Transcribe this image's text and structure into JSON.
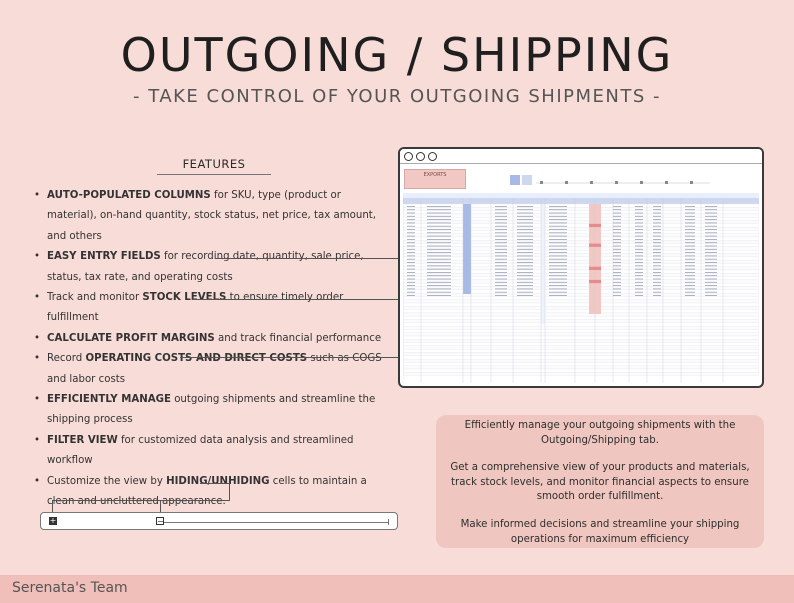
{
  "header": {
    "title": "OUTGOING / SHIPPING",
    "subtitle": "- TAKE CONTROL OF YOUR OUTGOING SHIPMENTS -"
  },
  "features": {
    "heading": "FEATURES",
    "items": [
      {
        "bold": "AUTO-POPULATED COLUMNS",
        "pre": "",
        "post": " for SKU, type (product or material), on-hand quantity, stock status, net price, tax amount, and others"
      },
      {
        "bold": "EASY ENTRY FIELDS",
        "pre": "",
        "post": " for recording date, quantity, sale price, status, tax rate, and operating costs"
      },
      {
        "bold": "STOCK LEVELS",
        "pre": "Track and monitor ",
        "post": " to ensure timely order fulfillment"
      },
      {
        "bold": "CALCULATE PROFIT MARGINS",
        "pre": "",
        "post": " and track financial performance"
      },
      {
        "bold": "OPERATING COSTS AND DIRECT COSTS",
        "pre": "Record ",
        "post": " such as COGS and labor costs"
      },
      {
        "bold": "EFFICIENTLY MANAGE",
        "pre": "",
        "post": " outgoing shipments and streamline the shipping process"
      },
      {
        "bold": "FILTER VIEW",
        "pre": "",
        "post": " for customized data analysis and streamlined workflow"
      },
      {
        "bold": "HIDING/UNHIDING",
        "pre": "Customize the view by ",
        "post": " cells to maintain a clean and uncluttered appearance."
      }
    ]
  },
  "mockup": {
    "sheet_label": "EXPORTS"
  },
  "info": {
    "p1": "Efficiently manage your outgoing shipments with the Outgoing/Shipping tab.",
    "p2": "Get a comprehensive view of your products and materials, track stock levels, and monitor financial aspects to ensure smooth order fulfillment.",
    "p3": "Make informed decisions and streamline your shipping operations for maximum efficiency"
  },
  "footer": {
    "brand": "Serenata's Team"
  },
  "icons": {
    "expand": "plus-square-icon",
    "collapse": "minus-square-icon"
  },
  "colors": {
    "background": "#f8dcd8",
    "card": "#efc7c0",
    "footer": "#f1bfb9",
    "sheet_header": "#cdd8f0",
    "sheet_accent": "#a9b9e6",
    "sheet_pink": "#f2c8c4"
  }
}
